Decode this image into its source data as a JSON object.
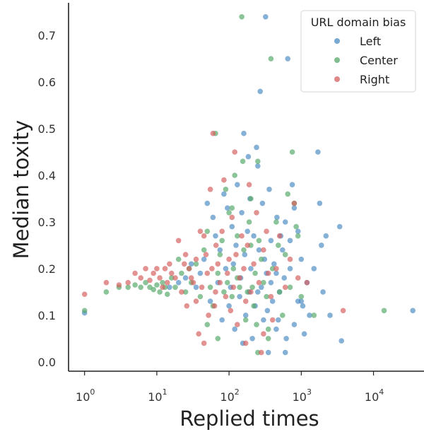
{
  "chart_data": {
    "type": "scatter",
    "xlabel": "Replied times",
    "ylabel": "Median toxity",
    "xscale": "log",
    "xlim": [
      0.6,
      50000
    ],
    "ylim": [
      -0.02,
      0.77
    ],
    "x_ticks": [
      {
        "value": 1,
        "base": "10",
        "exp": "0"
      },
      {
        "value": 10,
        "base": "10",
        "exp": "1"
      },
      {
        "value": 100,
        "base": "10",
        "exp": "2"
      },
      {
        "value": 1000,
        "base": "10",
        "exp": "3"
      },
      {
        "value": 10000,
        "base": "10",
        "exp": "4"
      }
    ],
    "y_ticks": [
      0.0,
      0.1,
      0.2,
      0.3,
      0.4,
      0.5,
      0.6,
      0.7
    ],
    "y_tick_labels": [
      "0.0",
      "0.1",
      "0.2",
      "0.3",
      "0.4",
      "0.5",
      "0.6",
      "0.7"
    ],
    "grid": false,
    "legend": {
      "title": "URL domain bias",
      "placement": "top-right"
    },
    "series": [
      {
        "name": "Left",
        "color": "#4c8cc4",
        "points": [
          [
            1,
            0.105
          ],
          [
            35000,
            0.11
          ],
          [
            3600,
            0.045
          ],
          [
            2000,
            0.15
          ],
          [
            1900,
            0.25
          ],
          [
            1800,
            0.34
          ],
          [
            1700,
            0.45
          ],
          [
            3400,
            0.29
          ],
          [
            2200,
            0.27
          ],
          [
            1500,
            0.2
          ],
          [
            1200,
            0.17
          ],
          [
            1100,
            0.06
          ],
          [
            1050,
            0.12
          ],
          [
            1000,
            0.22
          ],
          [
            900,
            0.28
          ],
          [
            800,
            0.33
          ],
          [
            700,
            0.26
          ],
          [
            650,
            0.65
          ],
          [
            620,
            0.05
          ],
          [
            600,
            0.02
          ],
          [
            580,
            0.18
          ],
          [
            550,
            0.24
          ],
          [
            500,
            0.15
          ],
          [
            480,
            0.09
          ],
          [
            460,
            0.31
          ],
          [
            450,
            0.19
          ],
          [
            420,
            0.21
          ],
          [
            400,
            0.13
          ],
          [
            380,
            0.26
          ],
          [
            360,
            0.37
          ],
          [
            340,
            0.11
          ],
          [
            320,
            0.74
          ],
          [
            310,
            0.22
          ],
          [
            300,
            0.09
          ],
          [
            290,
            0.34
          ],
          [
            280,
            0.16
          ],
          [
            270,
            0.58
          ],
          [
            260,
            0.24
          ],
          [
            250,
            0.42
          ],
          [
            240,
            0.46
          ],
          [
            230,
            0.12
          ],
          [
            220,
            0.27
          ],
          [
            210,
            0.05
          ],
          [
            200,
            0.2
          ],
          [
            195,
            0.35
          ],
          [
            190,
            0.15
          ],
          [
            185,
            0.44
          ],
          [
            180,
            0.28
          ],
          [
            170,
            0.1
          ],
          [
            165,
            0.23
          ],
          [
            160,
            0.49
          ],
          [
            155,
            0.04
          ],
          [
            150,
            0.32
          ],
          [
            145,
            0.18
          ],
          [
            140,
            0.14
          ],
          [
            130,
            0.38
          ],
          [
            125,
            0.25
          ],
          [
            120,
            0.07
          ],
          [
            115,
            0.21
          ],
          [
            110,
            0.29
          ],
          [
            105,
            0.16
          ],
          [
            100,
            0.12
          ],
          [
            95,
            0.33
          ],
          [
            90,
            0.2
          ],
          [
            85,
            0.36
          ],
          [
            80,
            0.09
          ],
          [
            75,
            0.24
          ],
          [
            70,
            0.17
          ],
          [
            65,
            0.27
          ],
          [
            60,
            0.31
          ],
          [
            55,
            0.13
          ],
          [
            50,
            0.34
          ],
          [
            45,
            0.22
          ],
          [
            40,
            0.19
          ],
          [
            35,
            0.16
          ],
          [
            30,
            0.21
          ],
          [
            25,
            0.18
          ],
          [
            20,
            0.17
          ],
          [
            15,
            0.16
          ],
          [
            800,
            0.08
          ],
          [
            900,
            0.13
          ],
          [
            1300,
            0.1
          ],
          [
            2500,
            0.1
          ],
          [
            750,
            0.38
          ],
          [
            600,
            0.3
          ],
          [
            450,
            0.07
          ],
          [
            520,
            0.27
          ],
          [
            380,
            0.17
          ],
          [
            330,
            0.19
          ],
          [
            700,
            0.2
          ],
          [
            350,
            0.02
          ],
          [
            1000,
            0.13
          ],
          [
            250,
            0.15
          ]
        ]
      },
      {
        "name": "Center",
        "color": "#55a868",
        "points": [
          [
            1,
            0.11
          ],
          [
            2,
            0.15
          ],
          [
            3,
            0.16
          ],
          [
            4,
            0.16
          ],
          [
            5,
            0.165
          ],
          [
            6,
            0.16
          ],
          [
            7,
            0.17
          ],
          [
            8,
            0.16
          ],
          [
            9,
            0.155
          ],
          [
            10,
            0.165
          ],
          [
            11,
            0.15
          ],
          [
            12,
            0.17
          ],
          [
            13,
            0.16
          ],
          [
            14,
            0.145
          ],
          [
            16,
            0.18
          ],
          [
            18,
            0.16
          ],
          [
            20,
            0.22
          ],
          [
            22,
            0.19
          ],
          [
            25,
            0.15
          ],
          [
            28,
            0.2
          ],
          [
            30,
            0.17
          ],
          [
            35,
            0.21
          ],
          [
            40,
            0.14
          ],
          [
            45,
            0.24
          ],
          [
            50,
            0.28
          ],
          [
            55,
            0.16
          ],
          [
            60,
            0.12
          ],
          [
            65,
            0.49
          ],
          [
            70,
            0.19
          ],
          [
            75,
            0.23
          ],
          [
            80,
            0.26
          ],
          [
            85,
            0.15
          ],
          [
            90,
            0.37
          ],
          [
            95,
            0.17
          ],
          [
            100,
            0.32
          ],
          [
            110,
            0.14
          ],
          [
            115,
            0.2
          ],
          [
            120,
            0.4
          ],
          [
            130,
            0.18
          ],
          [
            140,
            0.16
          ],
          [
            150,
            0.74
          ],
          [
            155,
            0.43
          ],
          [
            160,
            0.24
          ],
          [
            170,
            0.09
          ],
          [
            180,
            0.15
          ],
          [
            190,
            0.3
          ],
          [
            200,
            0.35
          ],
          [
            210,
            0.16
          ],
          [
            220,
            0.12
          ],
          [
            230,
            0.19
          ],
          [
            240,
            0.08
          ],
          [
            250,
            0.43
          ],
          [
            260,
            0.26
          ],
          [
            280,
            0.22
          ],
          [
            300,
            0.17
          ],
          [
            330,
            0.14
          ],
          [
            350,
            0.05
          ],
          [
            380,
            0.65
          ],
          [
            400,
            0.2
          ],
          [
            450,
            0.3
          ],
          [
            480,
            0.25
          ],
          [
            500,
            0.15
          ],
          [
            550,
            0.1
          ],
          [
            600,
            0.23
          ],
          [
            650,
            0.36
          ],
          [
            700,
            0.16
          ],
          [
            750,
            0.45
          ],
          [
            800,
            0.34
          ],
          [
            850,
            0.29
          ],
          [
            900,
            0.27
          ],
          [
            1000,
            0.14
          ],
          [
            1500,
            0.1
          ],
          [
            14000,
            0.11
          ],
          [
            350,
            0.07
          ],
          [
            250,
            0.02
          ],
          [
            200,
            0.25
          ],
          [
            130,
            0.27
          ],
          [
            110,
            0.33
          ],
          [
            70,
            0.05
          ],
          [
            50,
            0.08
          ]
        ]
      },
      {
        "name": "Right",
        "color": "#d65f5f",
        "points": [
          [
            1,
            0.145
          ],
          [
            2,
            0.17
          ],
          [
            3,
            0.165
          ],
          [
            4,
            0.17
          ],
          [
            5,
            0.19
          ],
          [
            6,
            0.18
          ],
          [
            7,
            0.2
          ],
          [
            8,
            0.175
          ],
          [
            9,
            0.19
          ],
          [
            10,
            0.2
          ],
          [
            11,
            0.18
          ],
          [
            12,
            0.16
          ],
          [
            13,
            0.2
          ],
          [
            14,
            0.17
          ],
          [
            15,
            0.21
          ],
          [
            16,
            0.19
          ],
          [
            18,
            0.18
          ],
          [
            20,
            0.26
          ],
          [
            22,
            0.15
          ],
          [
            24,
            0.21
          ],
          [
            26,
            0.12
          ],
          [
            28,
            0.2
          ],
          [
            30,
            0.18
          ],
          [
            32,
            0.17
          ],
          [
            35,
            0.22
          ],
          [
            38,
            0.06
          ],
          [
            40,
            0.28
          ],
          [
            42,
            0.16
          ],
          [
            45,
            0.27
          ],
          [
            48,
            0.23
          ],
          [
            50,
            0.19
          ],
          [
            52,
            0.1
          ],
          [
            55,
            0.37
          ],
          [
            58,
            0.2
          ],
          [
            60,
            0.49
          ],
          [
            63,
            0.12
          ],
          [
            66,
            0.25
          ],
          [
            70,
            0.21
          ],
          [
            75,
            0.17
          ],
          [
            80,
            0.28
          ],
          [
            85,
            0.39
          ],
          [
            90,
            0.14
          ],
          [
            95,
            0.19
          ],
          [
            100,
            0.22
          ],
          [
            105,
            0.11
          ],
          [
            110,
            0.31
          ],
          [
            115,
            0.16
          ],
          [
            120,
            0.45
          ],
          [
            125,
            0.23
          ],
          [
            130,
            0.08
          ],
          [
            140,
            0.18
          ],
          [
            150,
            0.27
          ],
          [
            160,
            0.2
          ],
          [
            170,
            0.13
          ],
          [
            180,
            0.25
          ],
          [
            190,
            0.38
          ],
          [
            200,
            0.15
          ],
          [
            220,
            0.21
          ],
          [
            240,
            0.32
          ],
          [
            260,
            0.17
          ],
          [
            280,
            0.02
          ],
          [
            300,
            0.24
          ],
          [
            330,
            0.28
          ],
          [
            350,
            0.19
          ],
          [
            380,
            0.14
          ],
          [
            400,
            0.09
          ],
          [
            450,
            0.2
          ],
          [
            500,
            0.27
          ],
          [
            600,
            0.16
          ],
          [
            700,
            0.22
          ],
          [
            800,
            0.34
          ],
          [
            900,
            0.18
          ],
          [
            3800,
            0.11
          ],
          [
            1200,
            0.17
          ],
          [
            45,
            0.04
          ],
          [
            65,
            0.15
          ],
          [
            25,
            0.23
          ],
          [
            35,
            0.13
          ],
          [
            300,
            0.06
          ],
          [
            170,
            0.04
          ]
        ]
      }
    ]
  }
}
